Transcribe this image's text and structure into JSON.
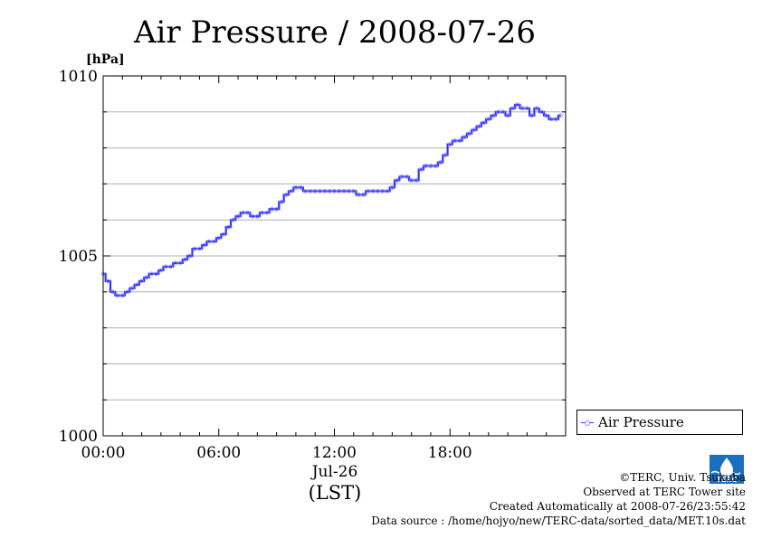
{
  "chart_data": {
    "type": "line",
    "title": "Air Pressure / 2008-07-26",
    "ylabel": "[hPa]",
    "xlabel": "(LST)",
    "x_date_label": "Jul-26",
    "ylim": [
      1000,
      1010
    ],
    "y_ticks": [
      "1000",
      "1005",
      "1010"
    ],
    "x_ticks": [
      "00:00",
      "06:00",
      "12:00",
      "18:00"
    ],
    "grid": true,
    "legend_placement": "bottom-right outside",
    "series": [
      {
        "name": "Air Pressure",
        "color": "#3333ff",
        "x": [
          "00:00",
          "00:15",
          "00:30",
          "00:45",
          "01:00",
          "01:15",
          "01:30",
          "01:45",
          "02:00",
          "02:15",
          "02:30",
          "02:45",
          "03:00",
          "03:15",
          "03:30",
          "03:45",
          "04:00",
          "04:15",
          "04:30",
          "04:45",
          "05:00",
          "05:15",
          "05:30",
          "05:45",
          "06:00",
          "06:15",
          "06:30",
          "06:45",
          "07:00",
          "07:15",
          "07:30",
          "07:45",
          "08:00",
          "08:15",
          "08:30",
          "08:45",
          "09:00",
          "09:15",
          "09:30",
          "09:45",
          "10:00",
          "10:15",
          "10:30",
          "10:45",
          "11:00",
          "11:15",
          "11:30",
          "11:45",
          "12:00",
          "12:15",
          "12:30",
          "12:45",
          "13:00",
          "13:15",
          "13:30",
          "13:45",
          "14:00",
          "14:15",
          "14:30",
          "14:45",
          "15:00",
          "15:15",
          "15:30",
          "15:45",
          "16:00",
          "16:15",
          "16:30",
          "16:45",
          "17:00",
          "17:15",
          "17:30",
          "17:45",
          "18:00",
          "18:15",
          "18:30",
          "18:45",
          "19:00",
          "19:15",
          "19:30",
          "19:45",
          "20:00",
          "20:15",
          "20:30",
          "20:45",
          "21:00",
          "21:15",
          "21:30",
          "21:45",
          "22:00",
          "22:15",
          "22:30",
          "22:45",
          "23:00",
          "23:15",
          "23:30",
          "23:45"
        ],
        "values": [
          1004.5,
          1004.3,
          1004.0,
          1003.9,
          1003.9,
          1004.0,
          1004.1,
          1004.2,
          1004.3,
          1004.4,
          1004.5,
          1004.5,
          1004.6,
          1004.7,
          1004.7,
          1004.8,
          1004.8,
          1004.9,
          1005.0,
          1005.2,
          1005.2,
          1005.3,
          1005.4,
          1005.4,
          1005.5,
          1005.6,
          1005.8,
          1006.0,
          1006.1,
          1006.2,
          1006.2,
          1006.1,
          1006.1,
          1006.2,
          1006.2,
          1006.3,
          1006.3,
          1006.5,
          1006.7,
          1006.8,
          1006.9,
          1006.9,
          1006.8,
          1006.8,
          1006.8,
          1006.8,
          1006.8,
          1006.8,
          1006.8,
          1006.8,
          1006.8,
          1006.8,
          1006.8,
          1006.7,
          1006.7,
          1006.8,
          1006.8,
          1006.8,
          1006.8,
          1006.8,
          1006.9,
          1007.1,
          1007.2,
          1007.2,
          1007.1,
          1007.1,
          1007.4,
          1007.5,
          1007.5,
          1007.5,
          1007.6,
          1007.8,
          1008.1,
          1008.2,
          1008.2,
          1008.3,
          1008.4,
          1008.5,
          1008.6,
          1008.7,
          1008.8,
          1008.9,
          1009.0,
          1009.0,
          1008.9,
          1009.1,
          1009.2,
          1009.1,
          1009.1,
          1008.9,
          1009.1,
          1009.0,
          1008.9,
          1008.8,
          1008.8,
          1008.9
        ]
      }
    ]
  },
  "legend": {
    "label": "Air Pressure"
  },
  "credits": {
    "copyright": "©TERC, Univ. Tsukuba",
    "site": "Observed at TERC Tower site",
    "created": "Created Automatically at 2008-07-26/23:55:42",
    "source": "Data source : /home/hojyo/new/TERC-data/sorted_data/MET.10s.dat"
  },
  "logo": {
    "text": "TERC",
    "color": "#1a6fc0"
  }
}
